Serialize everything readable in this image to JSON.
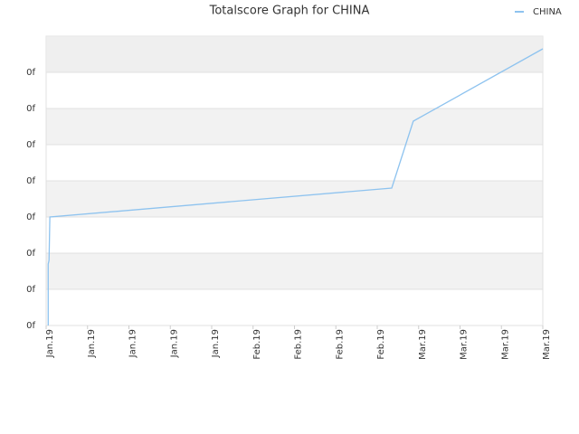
{
  "chart_data": {
    "type": "line",
    "title": "Totalscore Graph for CHINA",
    "x": [
      0.05,
      0.05,
      0.07,
      0.09,
      8.35,
      8.87,
      12
    ],
    "series": [
      {
        "name": "CHINA",
        "color": "#8ec3ef",
        "values": [
          0,
          1.7,
          1.8,
          3,
          3.8,
          5.65,
          7.65
        ]
      }
    ],
    "xlim": [
      0,
      12
    ],
    "xticks": [
      {
        "value": 0,
        "label": "Jan.19"
      },
      {
        "value": 1,
        "label": "Jan.19"
      },
      {
        "value": 2,
        "label": "Jan.19"
      },
      {
        "value": 3,
        "label": "Jan.19"
      },
      {
        "value": 4,
        "label": "Jan.19"
      },
      {
        "value": 5,
        "label": "Feb.19"
      },
      {
        "value": 6,
        "label": "Feb.19"
      },
      {
        "value": 7,
        "label": "Feb.19"
      },
      {
        "value": 8,
        "label": "Feb.19"
      },
      {
        "value": 9,
        "label": "Mar.19"
      },
      {
        "value": 10,
        "label": "Mar.19"
      },
      {
        "value": 11,
        "label": "Mar.19"
      },
      {
        "value": 12,
        "label": "Mar.19"
      }
    ],
    "ylim": [
      0,
      8
    ],
    "yticks": [
      {
        "value": 0,
        "label": "0f"
      },
      {
        "value": 1,
        "label": "0f"
      },
      {
        "value": 2,
        "label": "0f"
      },
      {
        "value": 3,
        "label": "0f"
      },
      {
        "value": 4,
        "label": "0f"
      },
      {
        "value": 5,
        "label": "0f"
      },
      {
        "value": 6,
        "label": "0f"
      },
      {
        "value": 7,
        "label": "0f"
      }
    ],
    "grid": true,
    "legend": "top-right"
  }
}
